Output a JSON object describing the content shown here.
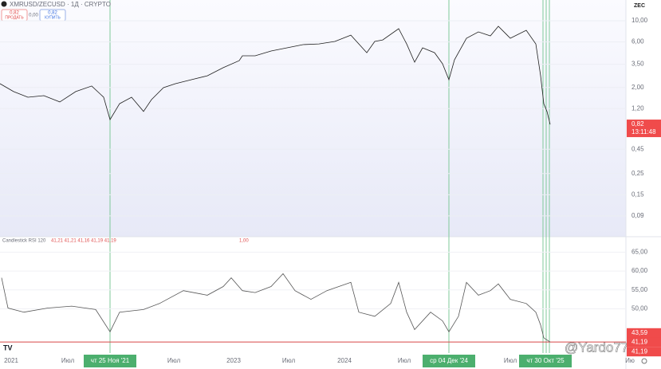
{
  "header": {
    "symbol": "XMRUSD/ZECUSD · 1Д · CRYPTO",
    "sell_price": "0,82",
    "sell_label": "ПРОДАТЬ",
    "spread": "0,00",
    "buy_price": "0,82",
    "buy_label": "КУПИТЬ",
    "currency": "ZEC"
  },
  "price_pane": {
    "scale": "log",
    "ylim": [
      0.0545,
      16.5
    ],
    "yticks": [
      {
        "value": 10,
        "label": "10,00"
      },
      {
        "value": 6,
        "label": "6,00"
      },
      {
        "value": 3.5,
        "label": "3,50"
      },
      {
        "value": 2,
        "label": "2,00"
      },
      {
        "value": 1.2,
        "label": "1,20"
      },
      {
        "value": 0.45,
        "label": "0,45"
      },
      {
        "value": 0.25,
        "label": "0,25"
      },
      {
        "value": 0.15,
        "label": "0,15"
      },
      {
        "value": 0.09,
        "label": "0,09"
      }
    ],
    "color": "#1f1f1f",
    "values": [
      2.19,
      1.81,
      1.58,
      1.64,
      1.41,
      1.81,
      2.07,
      1.58,
      0.92,
      1.35,
      1.58,
      1.12,
      1.49,
      1.99,
      2.19,
      2.41,
      2.65,
      3.22,
      3.82,
      4.29,
      4.29,
      4.82,
      5.2,
      5.62,
      5.72,
      6.07,
      7.07,
      4.63,
      6.07,
      6.3,
      8.25,
      5.72,
      3.68,
      5.2,
      4.63,
      3.54,
      2.41,
      3.9,
      6.55,
      7.64,
      6.94,
      8.74,
      6.55,
      7.94,
      5.72,
      2.65,
      1.35,
      1.12,
      0.82
    ],
    "last_label": "0,82",
    "countdown": "13:11:48"
  },
  "rsi_pane": {
    "title": "Candlestick RSI 120",
    "ohlc": "41,21 41,21 41,16 41,19 41,19",
    "level_text": "1,00",
    "ylim": [
      38.9,
      69.1
    ],
    "yticks": [
      {
        "value": 65,
        "label": "65,00"
      },
      {
        "value": 60,
        "label": "60,00"
      },
      {
        "value": 55,
        "label": "55,00"
      },
      {
        "value": 50,
        "label": "50,00"
      }
    ],
    "color": "#555555",
    "values": [
      58.2,
      50.2,
      49.1,
      50.2,
      50.7,
      49.8,
      43.9,
      49.1,
      49.8,
      51.4,
      54.8,
      53.6,
      55.9,
      58.2,
      54.8,
      54.3,
      55.9,
      59.3,
      54.8,
      52.5,
      54.8,
      57.0,
      49.1,
      48.0,
      51.4,
      57.0,
      49.1,
      44.5,
      49.1,
      46.8,
      43.9,
      48.0,
      57.0,
      53.6,
      54.8,
      56.6,
      52.5,
      51.4,
      49.1,
      45.7,
      42.3,
      41.19
    ],
    "markers": [
      {
        "value": 43.59,
        "label": "43,59"
      },
      {
        "value": 41.19,
        "label": "41,19"
      }
    ],
    "level": 41.19,
    "level_label": "41,19"
  },
  "time_axis": {
    "labels": [
      "2021",
      "Июл",
      "Июл",
      "2023",
      "Июл",
      "2024",
      "Июл",
      "Июл",
      "Ию"
    ],
    "highlights": [
      "чт 25 Ноя '21",
      "ср 04 Дек '24",
      "чт 30 Окт '25"
    ]
  },
  "watermark": "@Yardo77",
  "logo": "TV"
}
